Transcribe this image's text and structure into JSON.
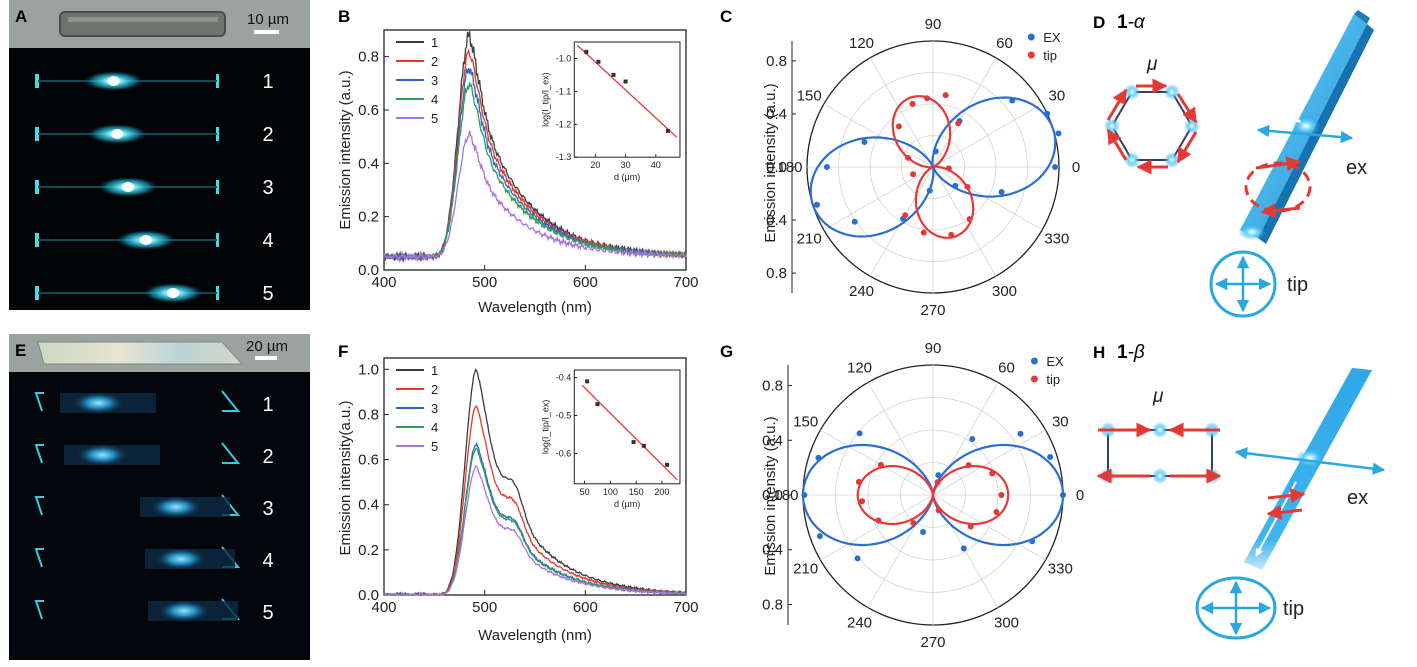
{
  "panels": {
    "A": {
      "label": "A",
      "scalebar": "10 µm",
      "rows": [
        "1",
        "2",
        "3",
        "4",
        "5"
      ]
    },
    "E": {
      "label": "E",
      "scalebar": "20 µm",
      "rows": [
        "1",
        "2",
        "3",
        "4",
        "5"
      ]
    },
    "D": {
      "label": "D",
      "title_num": "1",
      "title_sym": "-α",
      "mu": "μ",
      "ex": "ex",
      "tip": "tip"
    },
    "H": {
      "label": "H",
      "title_num": "1",
      "title_sym": "-β",
      "mu": "μ",
      "ex": "ex",
      "tip": "tip"
    }
  },
  "colors": {
    "series": [
      "#3c3c3c",
      "#e8362d",
      "#2e64c6",
      "#2f9d52",
      "#a874dc"
    ],
    "ex": "#2a6fcf",
    "tip": "#e53935",
    "cyan": "#29a8e0",
    "micro_bg": "#020406",
    "micro_glow": "#3ed8ff"
  },
  "chart_data": [
    {
      "id": "B",
      "label": "B",
      "type": "line",
      "xlabel": "Wavelength (nm)",
      "ylabel": "Emission intensity (a.u.)",
      "xlim": [
        400,
        700
      ],
      "ylim": [
        0,
        0.9
      ],
      "xticks": [
        400,
        500,
        600,
        700
      ],
      "yticks": [
        0.0,
        0.2,
        0.4,
        0.6,
        0.8
      ],
      "legend": [
        "1",
        "2",
        "3",
        "4",
        "5"
      ],
      "peak_wavelength": 485,
      "onset_wavelength": 455,
      "base_level": 0.05,
      "series": [
        {
          "name": "1",
          "peak": 0.88
        },
        {
          "name": "2",
          "peak": 0.82
        },
        {
          "name": "3",
          "peak": 0.76
        },
        {
          "name": "4",
          "peak": 0.7
        },
        {
          "name": "5",
          "peak": 0.51
        }
      ],
      "inset": {
        "xlabel": "d (μm)",
        "ylabel": "log(I_tip/I_ex)",
        "xlim": [
          13,
          48
        ],
        "ylim": [
          -1.3,
          -0.95
        ],
        "xticks": [
          20,
          30,
          40
        ],
        "yticks": [
          -1.0,
          -1.1,
          -1.2,
          -1.3
        ],
        "points": [
          {
            "x": 17,
            "y": -0.98
          },
          {
            "x": 21,
            "y": -1.01
          },
          {
            "x": 26,
            "y": -1.05
          },
          {
            "x": 30,
            "y": -1.07
          },
          {
            "x": 44,
            "y": -1.22
          }
        ],
        "fit": [
          [
            14,
            -0.96
          ],
          [
            47,
            -1.24
          ]
        ]
      }
    },
    {
      "id": "F",
      "label": "F",
      "type": "line",
      "xlabel": "Wavelength (nm)",
      "ylabel": "Emission intensity(a.u.)",
      "xlim": [
        400,
        700
      ],
      "ylim": [
        0,
        1.05
      ],
      "xticks": [
        400,
        500,
        600,
        700
      ],
      "yticks": [
        0.0,
        0.2,
        0.4,
        0.6,
        0.8,
        1.0
      ],
      "legend": [
        "1",
        "2",
        "3",
        "4",
        "5"
      ],
      "peak_wavelength": 492,
      "onset_wavelength": 460,
      "base_level": 0.0,
      "series": [
        {
          "name": "1",
          "peak": 1.0
        },
        {
          "name": "2",
          "peak": 0.84
        },
        {
          "name": "3",
          "peak": 0.67
        },
        {
          "name": "4",
          "peak": 0.65
        },
        {
          "name": "5",
          "peak": 0.57
        }
      ],
      "inset": {
        "xlabel": "d (μm)",
        "ylabel": "log(I_tip/I_ex)",
        "xlim": [
          30,
          235
        ],
        "ylim": [
          -0.68,
          -0.38
        ],
        "xticks": [
          50,
          100,
          150,
          200
        ],
        "yticks": [
          -0.4,
          -0.5,
          -0.6
        ],
        "points": [
          {
            "x": 55,
            "y": -0.41
          },
          {
            "x": 75,
            "y": -0.47
          },
          {
            "x": 145,
            "y": -0.57
          },
          {
            "x": 165,
            "y": -0.58
          },
          {
            "x": 210,
            "y": -0.63
          }
        ],
        "fit": [
          [
            45,
            -0.42
          ],
          [
            230,
            -0.67
          ]
        ]
      }
    },
    {
      "id": "C",
      "label": "C",
      "type": "scatter",
      "subtype": "polar",
      "ylabel": "Emission intensity (a.u.)",
      "angle_labels": [
        "0",
        "30",
        "60",
        "90",
        "120",
        "150",
        "180",
        "210",
        "240",
        "270",
        "300",
        "330"
      ],
      "radial_ticks_upper": [
        "0.8",
        "0.4",
        "0.0"
      ],
      "radial_ticks_lower": [
        "0.4",
        "0.8"
      ],
      "legend": [
        "EX",
        "tip"
      ],
      "ex_max_angle": 17,
      "tip_max_angle": 107,
      "ex_points": [
        {
          "theta": 0,
          "r": 0.92
        },
        {
          "theta": 15,
          "r": 0.98
        },
        {
          "theta": 25,
          "r": 0.95
        },
        {
          "theta": 40,
          "r": 0.78
        },
        {
          "theta": 60,
          "r": 0.4
        },
        {
          "theta": 80,
          "r": 0.12
        },
        {
          "theta": 160,
          "r": 0.55
        },
        {
          "theta": 180,
          "r": 0.8
        },
        {
          "theta": 198,
          "r": 0.92
        },
        {
          "theta": 215,
          "r": 0.72
        },
        {
          "theta": 240,
          "r": 0.45
        },
        {
          "theta": 262,
          "r": 0.18
        },
        {
          "theta": 320,
          "r": 0.22
        },
        {
          "theta": 340,
          "r": 0.55
        }
      ],
      "tip_points": [
        {
          "theta": 60,
          "r": 0.38
        },
        {
          "theta": 80,
          "r": 0.55
        },
        {
          "theta": 95,
          "r": 0.52
        },
        {
          "theta": 108,
          "r": 0.5
        },
        {
          "theta": 130,
          "r": 0.4
        },
        {
          "theta": 160,
          "r": 0.2
        },
        {
          "theta": 200,
          "r": 0.16
        },
        {
          "theta": 240,
          "r": 0.42
        },
        {
          "theta": 262,
          "r": 0.5
        },
        {
          "theta": 285,
          "r": 0.53
        },
        {
          "theta": 305,
          "r": 0.48
        },
        {
          "theta": 330,
          "r": 0.3
        },
        {
          "theta": 355,
          "r": 0.12
        }
      ]
    },
    {
      "id": "G",
      "label": "G",
      "type": "scatter",
      "subtype": "polar",
      "ylabel": "Emission intensity (a.u.)",
      "angle_labels": [
        "0",
        "30",
        "60",
        "90",
        "120",
        "150",
        "180",
        "210",
        "240",
        "270",
        "300",
        "330"
      ],
      "radial_ticks_upper": [
        "0.8",
        "0.4",
        "0.0"
      ],
      "radial_ticks_lower": [
        "0.4",
        "0.8"
      ],
      "legend": [
        "EX",
        "tip"
      ],
      "ex_max_angle": 0,
      "tip_max_angle": 0,
      "ex_points": [
        {
          "theta": 0,
          "r": 0.95
        },
        {
          "theta": 18,
          "r": 0.9
        },
        {
          "theta": 35,
          "r": 0.78
        },
        {
          "theta": 55,
          "r": 0.5
        },
        {
          "theta": 75,
          "r": 0.15
        },
        {
          "theta": 140,
          "r": 0.7
        },
        {
          "theta": 162,
          "r": 0.88
        },
        {
          "theta": 180,
          "r": 0.94
        },
        {
          "theta": 200,
          "r": 0.88
        },
        {
          "theta": 220,
          "r": 0.72
        },
        {
          "theta": 255,
          "r": 0.28
        },
        {
          "theta": 300,
          "r": 0.45
        },
        {
          "theta": 335,
          "r": 0.8
        }
      ],
      "tip_points": [
        {
          "theta": 0,
          "r": 0.5
        },
        {
          "theta": 20,
          "r": 0.46
        },
        {
          "theta": 40,
          "r": 0.34
        },
        {
          "theta": 70,
          "r": 0.1
        },
        {
          "theta": 150,
          "r": 0.44
        },
        {
          "theta": 170,
          "r": 0.55
        },
        {
          "theta": 185,
          "r": 0.52
        },
        {
          "theta": 205,
          "r": 0.44
        },
        {
          "theta": 235,
          "r": 0.25
        },
        {
          "theta": 290,
          "r": 0.12
        },
        {
          "theta": 320,
          "r": 0.36
        },
        {
          "theta": 345,
          "r": 0.48
        }
      ]
    }
  ]
}
